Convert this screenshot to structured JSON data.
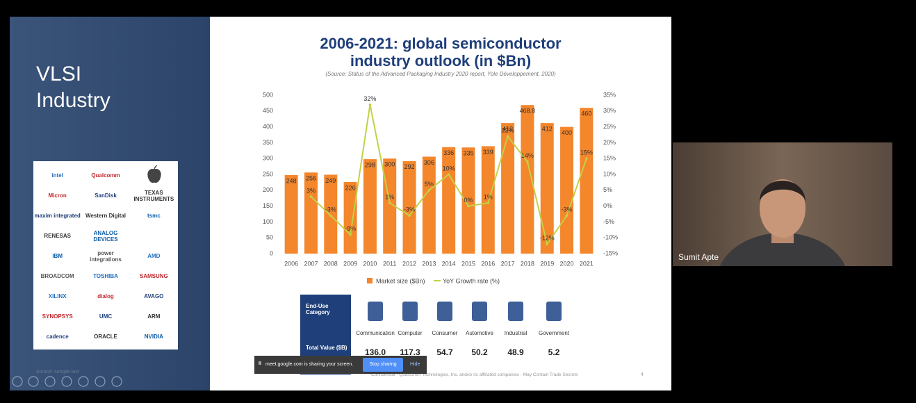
{
  "screen": {
    "slide_heading": "VLSI Industry",
    "slide_source": "Source: sample text",
    "logos": [
      [
        "intel",
        "Qualcomm"
      ],
      [
        "Micron",
        "SanDisk",
        "TEXAS INSTRUMENTS"
      ],
      [
        "maxim integrated",
        "Western Digital",
        "tsmc"
      ],
      [
        "RENESAS",
        "ANALOG DEVICES"
      ],
      [
        "IBM",
        "power integrations",
        "AMD"
      ],
      [
        "BROADCOM",
        "TOSHIBA",
        "SAMSUNG"
      ],
      [
        "XILINX",
        "dialog",
        "AVAGO"
      ],
      [
        "SYNOPSYS",
        "UMC",
        "ARM"
      ],
      [
        "cadence",
        "ORACLE",
        "NVIDIA"
      ]
    ],
    "participant": "Sumit Apte",
    "share_bar": {
      "message": "meet.google.com is sharing your screen.",
      "stop": "Stop sharing",
      "hide": "Hide"
    }
  },
  "chart_data": {
    "type": "bar",
    "title": "2006-2021: global semiconductor industry outlook (in $Bn)",
    "subtitle": "(Source: Status of the Advanced Packaging Industry 2020 report, Yole Développement, 2020)",
    "categories": [
      "2006",
      "2007",
      "2008",
      "2009",
      "2010",
      "2011",
      "2012",
      "2013",
      "2014",
      "2015",
      "2016",
      "2017",
      "2018",
      "2019",
      "2020",
      "2021"
    ],
    "series": [
      {
        "name": "Market size ($Bn)",
        "color": "#f4862c",
        "values": [
          248,
          256,
          249,
          226,
          298,
          300,
          292,
          306,
          336,
          335,
          339,
          412,
          468.8,
          412,
          400,
          460
        ]
      },
      {
        "name": "YoY Growth rate (%)",
        "color": "#c2d146",
        "type": "line",
        "axis": "y2",
        "values": [
          null,
          3,
          -3,
          -9,
          32,
          1,
          -3,
          5,
          10,
          0,
          1,
          22,
          14,
          -12,
          -3,
          15
        ],
        "value_labels": [
          null,
          "3%",
          "-3%",
          "-9%",
          "32%",
          "1%",
          "-3%",
          "5%",
          "10%",
          "0%",
          "1%",
          "22%",
          "14%",
          "-12%",
          "-3%",
          "15%"
        ]
      }
    ],
    "ylim": [
      0,
      500
    ],
    "yticks": [
      0,
      50,
      100,
      150,
      200,
      250,
      300,
      350,
      400,
      450,
      500
    ],
    "y2lim": [
      -15,
      35
    ],
    "y2ticks": [
      {
        "value": -15,
        "label": "-15%"
      },
      {
        "value": -10,
        "label": "-10%"
      },
      {
        "value": -5,
        "label": "-5%"
      },
      {
        "value": 0,
        "label": "0%"
      },
      {
        "value": 5,
        "label": "5%"
      },
      {
        "value": 10,
        "label": "10%"
      },
      {
        "value": 15,
        "label": "15%"
      },
      {
        "value": 20,
        "label": "20%"
      },
      {
        "value": 25,
        "label": "25%"
      },
      {
        "value": 30,
        "label": "30%"
      },
      {
        "value": 35,
        "label": "35%"
      }
    ],
    "grid": false,
    "legend": "bottom"
  },
  "table": {
    "header": "End-Use Category",
    "total_label": "Total Value ($B)",
    "columns": [
      {
        "name": "Communication",
        "value": "136.0"
      },
      {
        "name": "Computer",
        "value": "117.3"
      },
      {
        "name": "Consumer",
        "value": "54.7"
      },
      {
        "name": "Automotive",
        "value": "50.2"
      },
      {
        "name": "Industrial",
        "value": "48.9"
      },
      {
        "name": "Government",
        "value": "5.2"
      }
    ]
  },
  "footer": {
    "confidential": "Confidential - Qualcomm Technologies, Inc. and/or its affiliated companies - May Contain Trade Secrets",
    "page": "4"
  }
}
